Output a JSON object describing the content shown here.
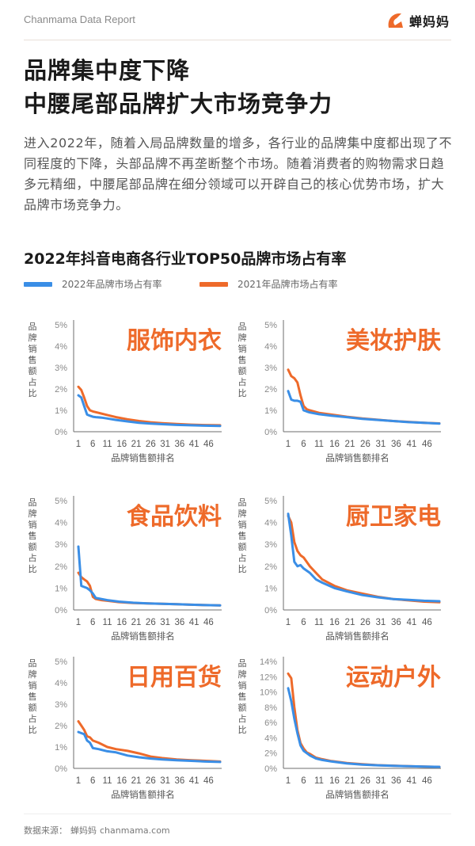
{
  "header": {
    "report_name": "Chanmama Data Report",
    "logo_text": "蝉妈妈"
  },
  "headline": {
    "line1": "品牌集中度下降",
    "line2": "中腰尾部品牌扩大市场竞争力"
  },
  "intro": "进入2022年，随着入局品牌数量的增多，各行业的品牌集中度都出现了不同程度的下降，头部品牌不再垄断整个市场。随着消费者的购物需求日趋多元精细，中腰尾部品牌在细分领域可以开辟自己的核心优势市场，扩大品牌市场竞争力。",
  "footer": {
    "source_label": "数据来源：",
    "source_brand": "蝉妈妈",
    "source_site": "chanmama.com"
  },
  "colors": {
    "series_2022": "#3a8ee6",
    "series_2021": "#ee6a2a",
    "category_label": "#ee6a2a",
    "axis_text": "#8a8a8a",
    "axis_line": "#6e6e6e"
  },
  "chart_data": {
    "title": "2022年抖音电商各行业TOP50品牌市场占有率",
    "legend": [
      "2022年品牌市场占有率",
      "2021年品牌市场占有率"
    ],
    "legend_position": "top-left",
    "xlabel": "品牌销售额排名",
    "ylabel": "品牌销售额占比",
    "xticks": [
      1,
      6,
      11,
      16,
      21,
      26,
      31,
      36,
      41,
      46
    ],
    "grid": false,
    "charts": [
      {
        "type": "line",
        "category": "服饰内衣",
        "ylim": [
          0,
          5
        ],
        "yticks": [
          "0%",
          "1%",
          "2%",
          "3%",
          "4%",
          "5%"
        ],
        "series": [
          {
            "name": "2022年品牌市场占有率",
            "points": [
              [
                1,
                1.7
              ],
              [
                2,
                1.6
              ],
              [
                3,
                1.2
              ],
              [
                4,
                0.8
              ],
              [
                5,
                0.75
              ],
              [
                6,
                0.7
              ],
              [
                7,
                0.68
              ],
              [
                9,
                0.66
              ],
              [
                11,
                0.62
              ],
              [
                14,
                0.55
              ],
              [
                18,
                0.48
              ],
              [
                22,
                0.42
              ],
              [
                26,
                0.38
              ],
              [
                30,
                0.35
              ],
              [
                35,
                0.32
              ],
              [
                40,
                0.3
              ],
              [
                45,
                0.28
              ],
              [
                50,
                0.27
              ]
            ]
          },
          {
            "name": "2021年品牌市场占有率",
            "points": [
              [
                1,
                2.1
              ],
              [
                2,
                1.95
              ],
              [
                3,
                1.6
              ],
              [
                4,
                1.2
              ],
              [
                5,
                1.0
              ],
              [
                6,
                0.95
              ],
              [
                8,
                0.88
              ],
              [
                11,
                0.78
              ],
              [
                14,
                0.68
              ],
              [
                18,
                0.58
              ],
              [
                22,
                0.5
              ],
              [
                26,
                0.44
              ],
              [
                30,
                0.4
              ],
              [
                35,
                0.36
              ],
              [
                40,
                0.33
              ],
              [
                45,
                0.31
              ],
              [
                50,
                0.3
              ]
            ]
          }
        ]
      },
      {
        "type": "line",
        "category": "美妆护肤",
        "ylim": [
          0,
          5
        ],
        "yticks": [
          "0%",
          "1%",
          "2%",
          "3%",
          "4%",
          "5%"
        ],
        "series": [
          {
            "name": "2022年品牌市场占有率",
            "points": [
              [
                1,
                1.9
              ],
              [
                2,
                1.5
              ],
              [
                3,
                1.45
              ],
              [
                4,
                1.45
              ],
              [
                5,
                1.4
              ],
              [
                6,
                1.0
              ],
              [
                7,
                0.95
              ],
              [
                8,
                0.9
              ],
              [
                11,
                0.82
              ],
              [
                15,
                0.75
              ],
              [
                20,
                0.68
              ],
              [
                25,
                0.6
              ],
              [
                30,
                0.55
              ],
              [
                35,
                0.5
              ],
              [
                40,
                0.45
              ],
              [
                45,
                0.42
              ],
              [
                50,
                0.38
              ]
            ]
          },
          {
            "name": "2021年品牌市场占有率",
            "points": [
              [
                1,
                2.9
              ],
              [
                2,
                2.6
              ],
              [
                3,
                2.5
              ],
              [
                4,
                2.3
              ],
              [
                5,
                1.7
              ],
              [
                6,
                1.2
              ],
              [
                7,
                1.05
              ],
              [
                8,
                1.0
              ],
              [
                11,
                0.88
              ],
              [
                15,
                0.8
              ],
              [
                20,
                0.7
              ],
              [
                25,
                0.62
              ],
              [
                30,
                0.56
              ],
              [
                35,
                0.5
              ],
              [
                40,
                0.46
              ],
              [
                45,
                0.42
              ],
              [
                50,
                0.39
              ]
            ]
          }
        ]
      },
      {
        "type": "line",
        "category": "食品饮料",
        "ylim": [
          0,
          5
        ],
        "yticks": [
          "0%",
          "1%",
          "2%",
          "3%",
          "4%",
          "5%"
        ],
        "series": [
          {
            "name": "2022年品牌市场占有率",
            "points": [
              [
                1,
                2.9
              ],
              [
                2,
                1.1
              ],
              [
                3,
                1.05
              ],
              [
                4,
                1.0
              ],
              [
                5,
                0.9
              ],
              [
                6,
                0.75
              ],
              [
                7,
                0.55
              ],
              [
                9,
                0.5
              ],
              [
                11,
                0.45
              ],
              [
                15,
                0.38
              ],
              [
                20,
                0.33
              ],
              [
                25,
                0.3
              ],
              [
                30,
                0.28
              ],
              [
                35,
                0.26
              ],
              [
                40,
                0.24
              ],
              [
                45,
                0.22
              ],
              [
                50,
                0.21
              ]
            ]
          },
          {
            "name": "2021年品牌市场占有率",
            "points": [
              [
                1,
                1.7
              ],
              [
                2,
                1.5
              ],
              [
                3,
                1.4
              ],
              [
                4,
                1.3
              ],
              [
                5,
                1.1
              ],
              [
                6,
                0.6
              ],
              [
                7,
                0.5
              ],
              [
                9,
                0.45
              ],
              [
                11,
                0.42
              ],
              [
                15,
                0.36
              ],
              [
                20,
                0.32
              ],
              [
                25,
                0.3
              ],
              [
                30,
                0.28
              ],
              [
                35,
                0.26
              ],
              [
                40,
                0.24
              ],
              [
                45,
                0.22
              ],
              [
                50,
                0.21
              ]
            ]
          }
        ]
      },
      {
        "type": "line",
        "category": "厨卫家电",
        "ylim": [
          0,
          5
        ],
        "yticks": [
          "0%",
          "1%",
          "2%",
          "3%",
          "4%",
          "5%"
        ],
        "series": [
          {
            "name": "2022年品牌市场占有率",
            "points": [
              [
                1,
                4.4
              ],
              [
                2,
                3.4
              ],
              [
                3,
                2.2
              ],
              [
                4,
                2.0
              ],
              [
                5,
                2.05
              ],
              [
                6,
                1.9
              ],
              [
                8,
                1.7
              ],
              [
                10,
                1.4
              ],
              [
                12,
                1.25
              ],
              [
                16,
                1.0
              ],
              [
                20,
                0.85
              ],
              [
                25,
                0.68
              ],
              [
                30,
                0.58
              ],
              [
                35,
                0.5
              ],
              [
                40,
                0.46
              ],
              [
                45,
                0.42
              ],
              [
                50,
                0.4
              ]
            ]
          },
          {
            "name": "2021年品牌市场占有率",
            "points": [
              [
                1,
                4.3
              ],
              [
                2,
                4.0
              ],
              [
                3,
                3.1
              ],
              [
                4,
                2.7
              ],
              [
                5,
                2.5
              ],
              [
                6,
                2.4
              ],
              [
                8,
                2.0
              ],
              [
                10,
                1.7
              ],
              [
                12,
                1.4
              ],
              [
                16,
                1.1
              ],
              [
                20,
                0.9
              ],
              [
                25,
                0.75
              ],
              [
                30,
                0.6
              ],
              [
                35,
                0.5
              ],
              [
                40,
                0.44
              ],
              [
                45,
                0.38
              ],
              [
                50,
                0.35
              ]
            ]
          }
        ]
      },
      {
        "type": "line",
        "category": "日用百货",
        "ylim": [
          0,
          5
        ],
        "yticks": [
          "0%",
          "1%",
          "2%",
          "3%",
          "4%",
          "5%"
        ],
        "series": [
          {
            "name": "2022年品牌市场占有率",
            "points": [
              [
                1,
                1.7
              ],
              [
                2,
                1.65
              ],
              [
                3,
                1.6
              ],
              [
                4,
                1.3
              ],
              [
                5,
                1.2
              ],
              [
                6,
                0.95
              ],
              [
                8,
                0.9
              ],
              [
                11,
                0.8
              ],
              [
                14,
                0.75
              ],
              [
                18,
                0.6
              ],
              [
                22,
                0.52
              ],
              [
                26,
                0.46
              ],
              [
                30,
                0.42
              ],
              [
                35,
                0.38
              ],
              [
                40,
                0.35
              ],
              [
                45,
                0.32
              ],
              [
                50,
                0.3
              ]
            ]
          },
          {
            "name": "2021年品牌市场占有率",
            "points": [
              [
                1,
                2.2
              ],
              [
                2,
                2.0
              ],
              [
                3,
                1.8
              ],
              [
                4,
                1.5
              ],
              [
                5,
                1.45
              ],
              [
                6,
                1.3
              ],
              [
                8,
                1.2
              ],
              [
                11,
                1.0
              ],
              [
                14,
                0.9
              ],
              [
                18,
                0.82
              ],
              [
                22,
                0.7
              ],
              [
                26,
                0.55
              ],
              [
                30,
                0.48
              ],
              [
                35,
                0.42
              ],
              [
                40,
                0.38
              ],
              [
                45,
                0.35
              ],
              [
                50,
                0.32
              ]
            ]
          }
        ]
      },
      {
        "type": "line",
        "category": "运动户外",
        "ylim": [
          0,
          14
        ],
        "yticks": [
          "0%",
          "2%",
          "4%",
          "6%",
          "8%",
          "10%",
          "12%",
          "14%"
        ],
        "series": [
          {
            "name": "2022年品牌市场占有率",
            "points": [
              [
                1,
                10.5
              ],
              [
                2,
                8.8
              ],
              [
                3,
                6.5
              ],
              [
                4,
                4.6
              ],
              [
                5,
                3.0
              ],
              [
                6,
                2.3
              ],
              [
                7,
                2.0
              ],
              [
                8,
                1.7
              ],
              [
                10,
                1.3
              ],
              [
                12,
                1.1
              ],
              [
                15,
                0.9
              ],
              [
                20,
                0.65
              ],
              [
                25,
                0.5
              ],
              [
                30,
                0.4
              ],
              [
                35,
                0.33
              ],
              [
                40,
                0.28
              ],
              [
                45,
                0.24
              ],
              [
                50,
                0.2
              ]
            ]
          },
          {
            "name": "2021年品牌市场占有率",
            "points": [
              [
                1,
                12.4
              ],
              [
                2,
                11.8
              ],
              [
                3,
                8.0
              ],
              [
                4,
                5.0
              ],
              [
                5,
                3.3
              ],
              [
                6,
                2.6
              ],
              [
                7,
                2.1
              ],
              [
                8,
                1.9
              ],
              [
                10,
                1.4
              ],
              [
                12,
                1.2
              ],
              [
                15,
                0.95
              ],
              [
                20,
                0.7
              ],
              [
                25,
                0.55
              ],
              [
                30,
                0.42
              ],
              [
                35,
                0.35
              ],
              [
                40,
                0.28
              ],
              [
                45,
                0.24
              ],
              [
                50,
                0.2
              ]
            ]
          }
        ]
      }
    ]
  }
}
